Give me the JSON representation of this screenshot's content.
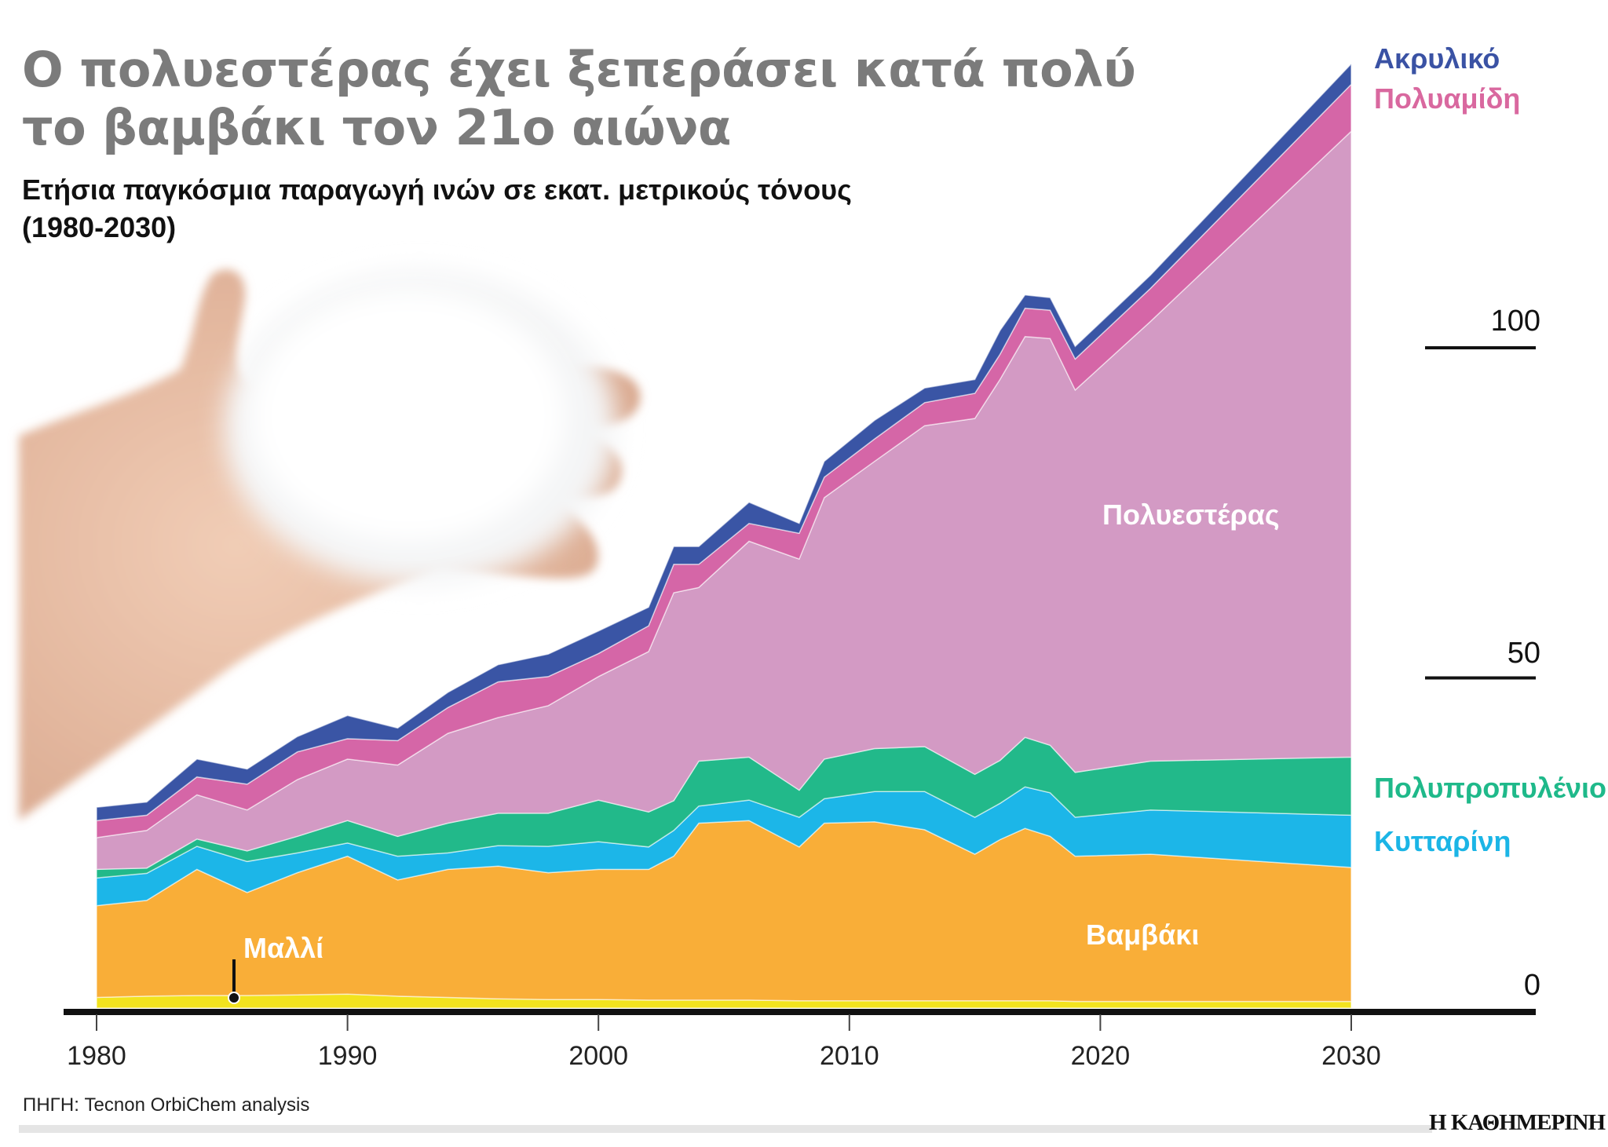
{
  "title_line1": "Ο πολυεστέρας έχει ξεπεράσει κατά πολύ",
  "title_line2": "το βαμβάκι τον 21ο αιώνα",
  "subtitle_line1": "Ετήσια παγκόσμια παραγωγή ινών σε εκατ. μετρικούς τόνους",
  "subtitle_line2": "(1980-2030)",
  "source": "ΠΗΓΗ: Tecnon OrbiChem analysis",
  "logo": "Η ΚΑΘΗΜΕΡΙΝΗ",
  "chart_data": {
    "type": "area",
    "stacked": true,
    "x": [
      1980,
      1982,
      1984,
      1986,
      1988,
      1990,
      1992,
      1994,
      1996,
      1998,
      2000,
      2002,
      2003,
      2004,
      2006,
      2008,
      2009,
      2011,
      2013,
      2015,
      2016,
      2017,
      2018,
      2019,
      2022,
      2030
    ],
    "xlim": [
      1980,
      2030
    ],
    "ylim": [
      0,
      145
    ],
    "x_ticks": [
      "1980",
      "1990",
      "2000",
      "2010",
      "2020",
      "2030"
    ],
    "y_ticks": [
      "0",
      "50",
      "100"
    ],
    "grid": false,
    "series": [
      {
        "name": "Μαλλί",
        "color": "#f2e31e",
        "values": [
          1.6,
          1.8,
          1.9,
          1.9,
          2.0,
          2.1,
          1.8,
          1.6,
          1.4,
          1.3,
          1.3,
          1.2,
          1.2,
          1.2,
          1.2,
          1.1,
          1.1,
          1.1,
          1.1,
          1.1,
          1.1,
          1.1,
          1.1,
          1.0,
          1.0,
          1.0
        ]
      },
      {
        "name": "Βαμβάκι",
        "color": "#f9ae38",
        "values": [
          13.9,
          14.5,
          19.1,
          15.6,
          18.5,
          20.9,
          17.6,
          19.4,
          20.1,
          19.2,
          19.7,
          19.8,
          21.8,
          26.8,
          27.2,
          23.3,
          26.9,
          27.1,
          25.9,
          22.2,
          24.4,
          26.1,
          24.9,
          22.0,
          22.3,
          20.3
        ]
      },
      {
        "name": "Κυτταρίνη",
        "color": "#1cb6e8",
        "values": [
          4.2,
          4.1,
          3.5,
          4.7,
          3.0,
          2.0,
          3.6,
          2.5,
          3.1,
          4.0,
          4.2,
          3.4,
          3.9,
          2.6,
          3.1,
          4.5,
          3.7,
          4.6,
          5.8,
          5.6,
          5.5,
          6.3,
          6.6,
          5.9,
          6.7,
          7.9
        ]
      },
      {
        "name": "Πολυπροπυλένιο",
        "color": "#22b98a",
        "values": [
          1.3,
          0.8,
          1.1,
          1.6,
          2.5,
          3.4,
          3.0,
          4.5,
          4.9,
          5.0,
          6.3,
          5.3,
          4.5,
          6.8,
          6.5,
          4.1,
          6.0,
          6.5,
          6.8,
          6.5,
          6.5,
          7.5,
          7.2,
          6.8,
          7.4,
          8.8
        ]
      },
      {
        "name": "Πολυεστέρας",
        "color": "#d39ac4",
        "values": [
          4.8,
          5.7,
          6.7,
          6.2,
          8.6,
          9.3,
          10.8,
          13.6,
          14.5,
          16.3,
          18.7,
          24.3,
          31.5,
          26.3,
          32.7,
          35.0,
          39.6,
          43.5,
          48.6,
          53.9,
          57.7,
          60.7,
          61.6,
          57.9,
          66.6,
          94.8
        ]
      },
      {
        "name": "Πολυαμίδη",
        "color": "#d566a7",
        "values": [
          2.6,
          2.3,
          2.7,
          3.9,
          4.2,
          3.1,
          3.7,
          3.9,
          5.4,
          4.4,
          3.5,
          3.9,
          4.3,
          3.5,
          2.7,
          3.9,
          3.1,
          3.4,
          3.5,
          3.8,
          3.8,
          4.3,
          4.3,
          4.7,
          5.0,
          7.1
        ]
      },
      {
        "name": "Ακρυλικό",
        "color": "#3a55a5",
        "values": [
          2.0,
          2.0,
          2.7,
          2.3,
          2.3,
          3.5,
          1.9,
          2.3,
          2.6,
          3.4,
          3.4,
          2.8,
          2.7,
          2.7,
          3.2,
          1.5,
          2.4,
          2.8,
          2.2,
          2.1,
          3.6,
          2.0,
          1.9,
          1.9,
          2.0,
          3.1
        ]
      }
    ],
    "labels": {
      "acrylic": "Ακρυλικό",
      "polyamide": "Πολυαμίδη",
      "polyester": "Πολυεστέρας",
      "polypropylene": "Πολυπροπυλένιο",
      "cellulose": "Κυτταρίνη",
      "cotton": "Βαμβάκι",
      "wool": "Μαλλί"
    },
    "label_colors": {
      "acrylic": "#3a52a4",
      "polyamide": "#d9689f",
      "polypropylene": "#1fb98a",
      "cellulose": "#1bb5e6",
      "inner": "#ffffff"
    }
  }
}
